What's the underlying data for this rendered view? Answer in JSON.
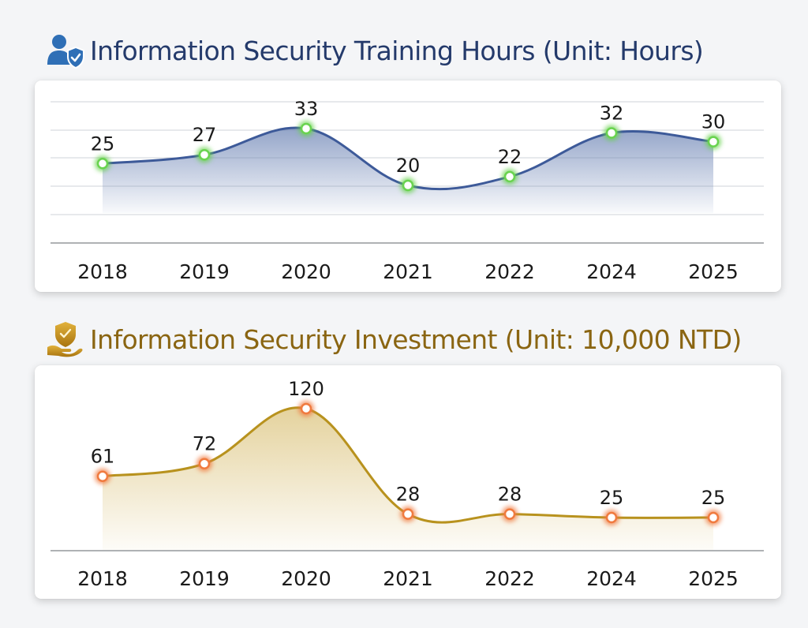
{
  "chart_data": [
    {
      "type": "area",
      "title": "Information Security Training Hours (Unit: Hours)",
      "categories": [
        "2018",
        "2019",
        "2020",
        "2021",
        "2022",
        "2024",
        "2025"
      ],
      "values": [
        25,
        27,
        33,
        20,
        22,
        32,
        30
      ],
      "data_labels": [
        "25",
        "27",
        "33",
        "20",
        "22",
        "32",
        "30"
      ],
      "grid": true,
      "legend": "none",
      "colors": {
        "line": "#3d5a99",
        "fill": "#6f86b6",
        "marker_glow": "#69d34f",
        "title": "#243a6b"
      },
      "icon": "user-shield-icon"
    },
    {
      "type": "area",
      "title": "Information Security Investment (Unit: 10,000 NTD)",
      "categories": [
        "2018",
        "2019",
        "2020",
        "2021",
        "2022",
        "2024",
        "2025"
      ],
      "values": [
        61,
        72,
        120,
        28,
        28,
        25,
        25
      ],
      "data_labels": [
        "61",
        "72",
        "120",
        "28",
        "28",
        "25",
        "25"
      ],
      "grid": false,
      "legend": "none",
      "colors": {
        "line": "#b8921e",
        "fill": "#d9bf73",
        "marker_glow": "#f07a3f",
        "title": "#8a6512"
      },
      "icon": "hand-shield-icon"
    }
  ]
}
